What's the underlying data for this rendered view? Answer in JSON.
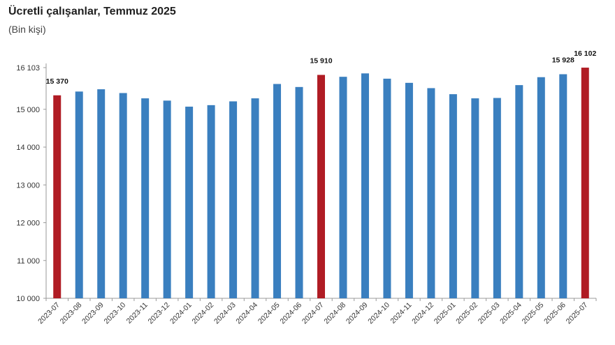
{
  "header": {
    "title": "Ücretli çalışanlar, Temmuz 2025",
    "subtitle": "(Bin kişi)"
  },
  "colors": {
    "bar": "#3a7fbf",
    "highlight": "#b01c24",
    "axis": "#999999"
  },
  "chart_data": {
    "type": "bar",
    "categories": [
      "2023-07",
      "2023-08",
      "2023-09",
      "2023-10",
      "2023-11",
      "2023-12",
      "2024-01",
      "2024-02",
      "2024-03",
      "2024-04",
      "2024-05",
      "2024-06",
      "2024-07",
      "2024-08",
      "2024-09",
      "2024-10",
      "2024-11",
      "2024-12",
      "2025-01",
      "2025-02",
      "2025-03",
      "2025-04",
      "2025-05",
      "2025-06",
      "2025-07"
    ],
    "values": [
      15370,
      15470,
      15530,
      15430,
      15290,
      15230,
      15070,
      15110,
      15210,
      15290,
      15670,
      15590,
      15910,
      15860,
      15950,
      15810,
      15700,
      15560,
      15400,
      15290,
      15300,
      15640,
      15850,
      15928,
      16102
    ],
    "highlight_indices": [
      0,
      12,
      24
    ],
    "data_labels": [
      {
        "index": 0,
        "text": "15 370"
      },
      {
        "index": 12,
        "text": "15 910"
      },
      {
        "index": 23,
        "text": "15 928"
      },
      {
        "index": 24,
        "text": "16 102"
      }
    ],
    "y_ticks": [
      {
        "value": 10000,
        "label": "10 000"
      },
      {
        "value": 11000,
        "label": "11 000"
      },
      {
        "value": 12000,
        "label": "12 000"
      },
      {
        "value": 13000,
        "label": "13 000"
      },
      {
        "value": 14000,
        "label": "14 000"
      },
      {
        "value": 15000,
        "label": "15 000"
      },
      {
        "value": 16103,
        "label": "16 103"
      }
    ],
    "ylim": [
      10000,
      16103
    ],
    "grid": false
  }
}
